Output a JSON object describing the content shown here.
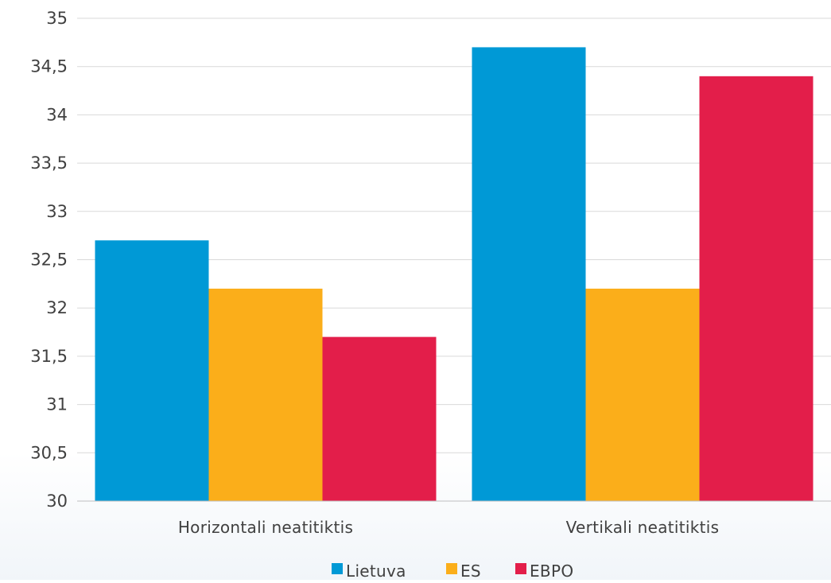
{
  "chart_data": {
    "type": "bar",
    "categories": [
      "Horizontali neatitiktis",
      "Vertikali neatitiktis"
    ],
    "series": [
      {
        "name": "Lietuva",
        "values": [
          32.7,
          34.7
        ],
        "color": "#0099d6"
      },
      {
        "name": "ES",
        "values": [
          32.2,
          32.2
        ],
        "color": "#fbae1a"
      },
      {
        "name": "EBPO",
        "values": [
          31.7,
          34.4
        ],
        "color": "#e31e4a"
      }
    ],
    "ylim": [
      30,
      35
    ],
    "yticks": [
      "30",
      "30,5",
      "31",
      "31,5",
      "32",
      "32,5",
      "33",
      "33,5",
      "34",
      "34,5",
      "35"
    ],
    "grid": true,
    "legend": "bottom"
  }
}
